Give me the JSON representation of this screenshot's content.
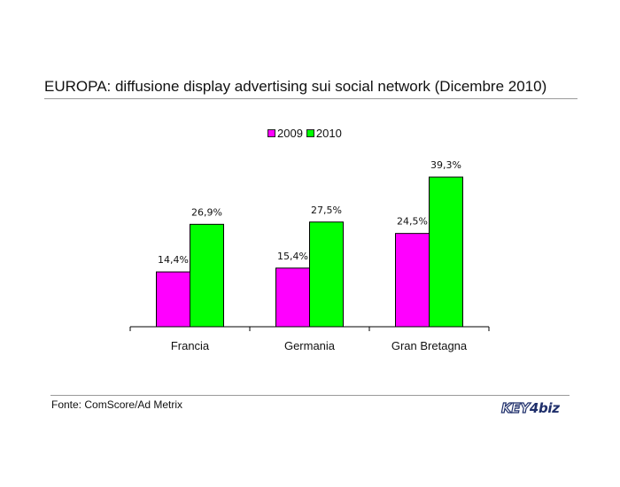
{
  "title": "EUROPA: diffusione display advertising sui social network (Dicembre 2010)",
  "source": "Fonte: ComScore/Ad Metrix",
  "logo": {
    "text": "KEY4biz",
    "part1": "KEY",
    "part2": "4",
    "part3": "biz"
  },
  "colors": {
    "series_2009": "#ff00ff",
    "series_2010": "#00ff00",
    "logo": "#1f2f6b"
  },
  "chart_data": {
    "type": "bar",
    "title": "EUROPA: diffusione display advertising sui social network (Dicembre 2010)",
    "categories": [
      "Francia",
      "Germania",
      "Gran Bretagna"
    ],
    "series": [
      {
        "name": "2009",
        "values": [
          14.4,
          15.4,
          24.5
        ],
        "labels": [
          "14,4%",
          "15,4%",
          "24,5%"
        ],
        "color": "#ff00ff"
      },
      {
        "name": "2010",
        "values": [
          26.9,
          27.5,
          39.3
        ],
        "labels": [
          "26,9%",
          "27,5%",
          "39,3%"
        ],
        "color": "#00ff00"
      }
    ],
    "ylim": [
      0,
      40
    ],
    "grid": false,
    "legend": "top"
  }
}
